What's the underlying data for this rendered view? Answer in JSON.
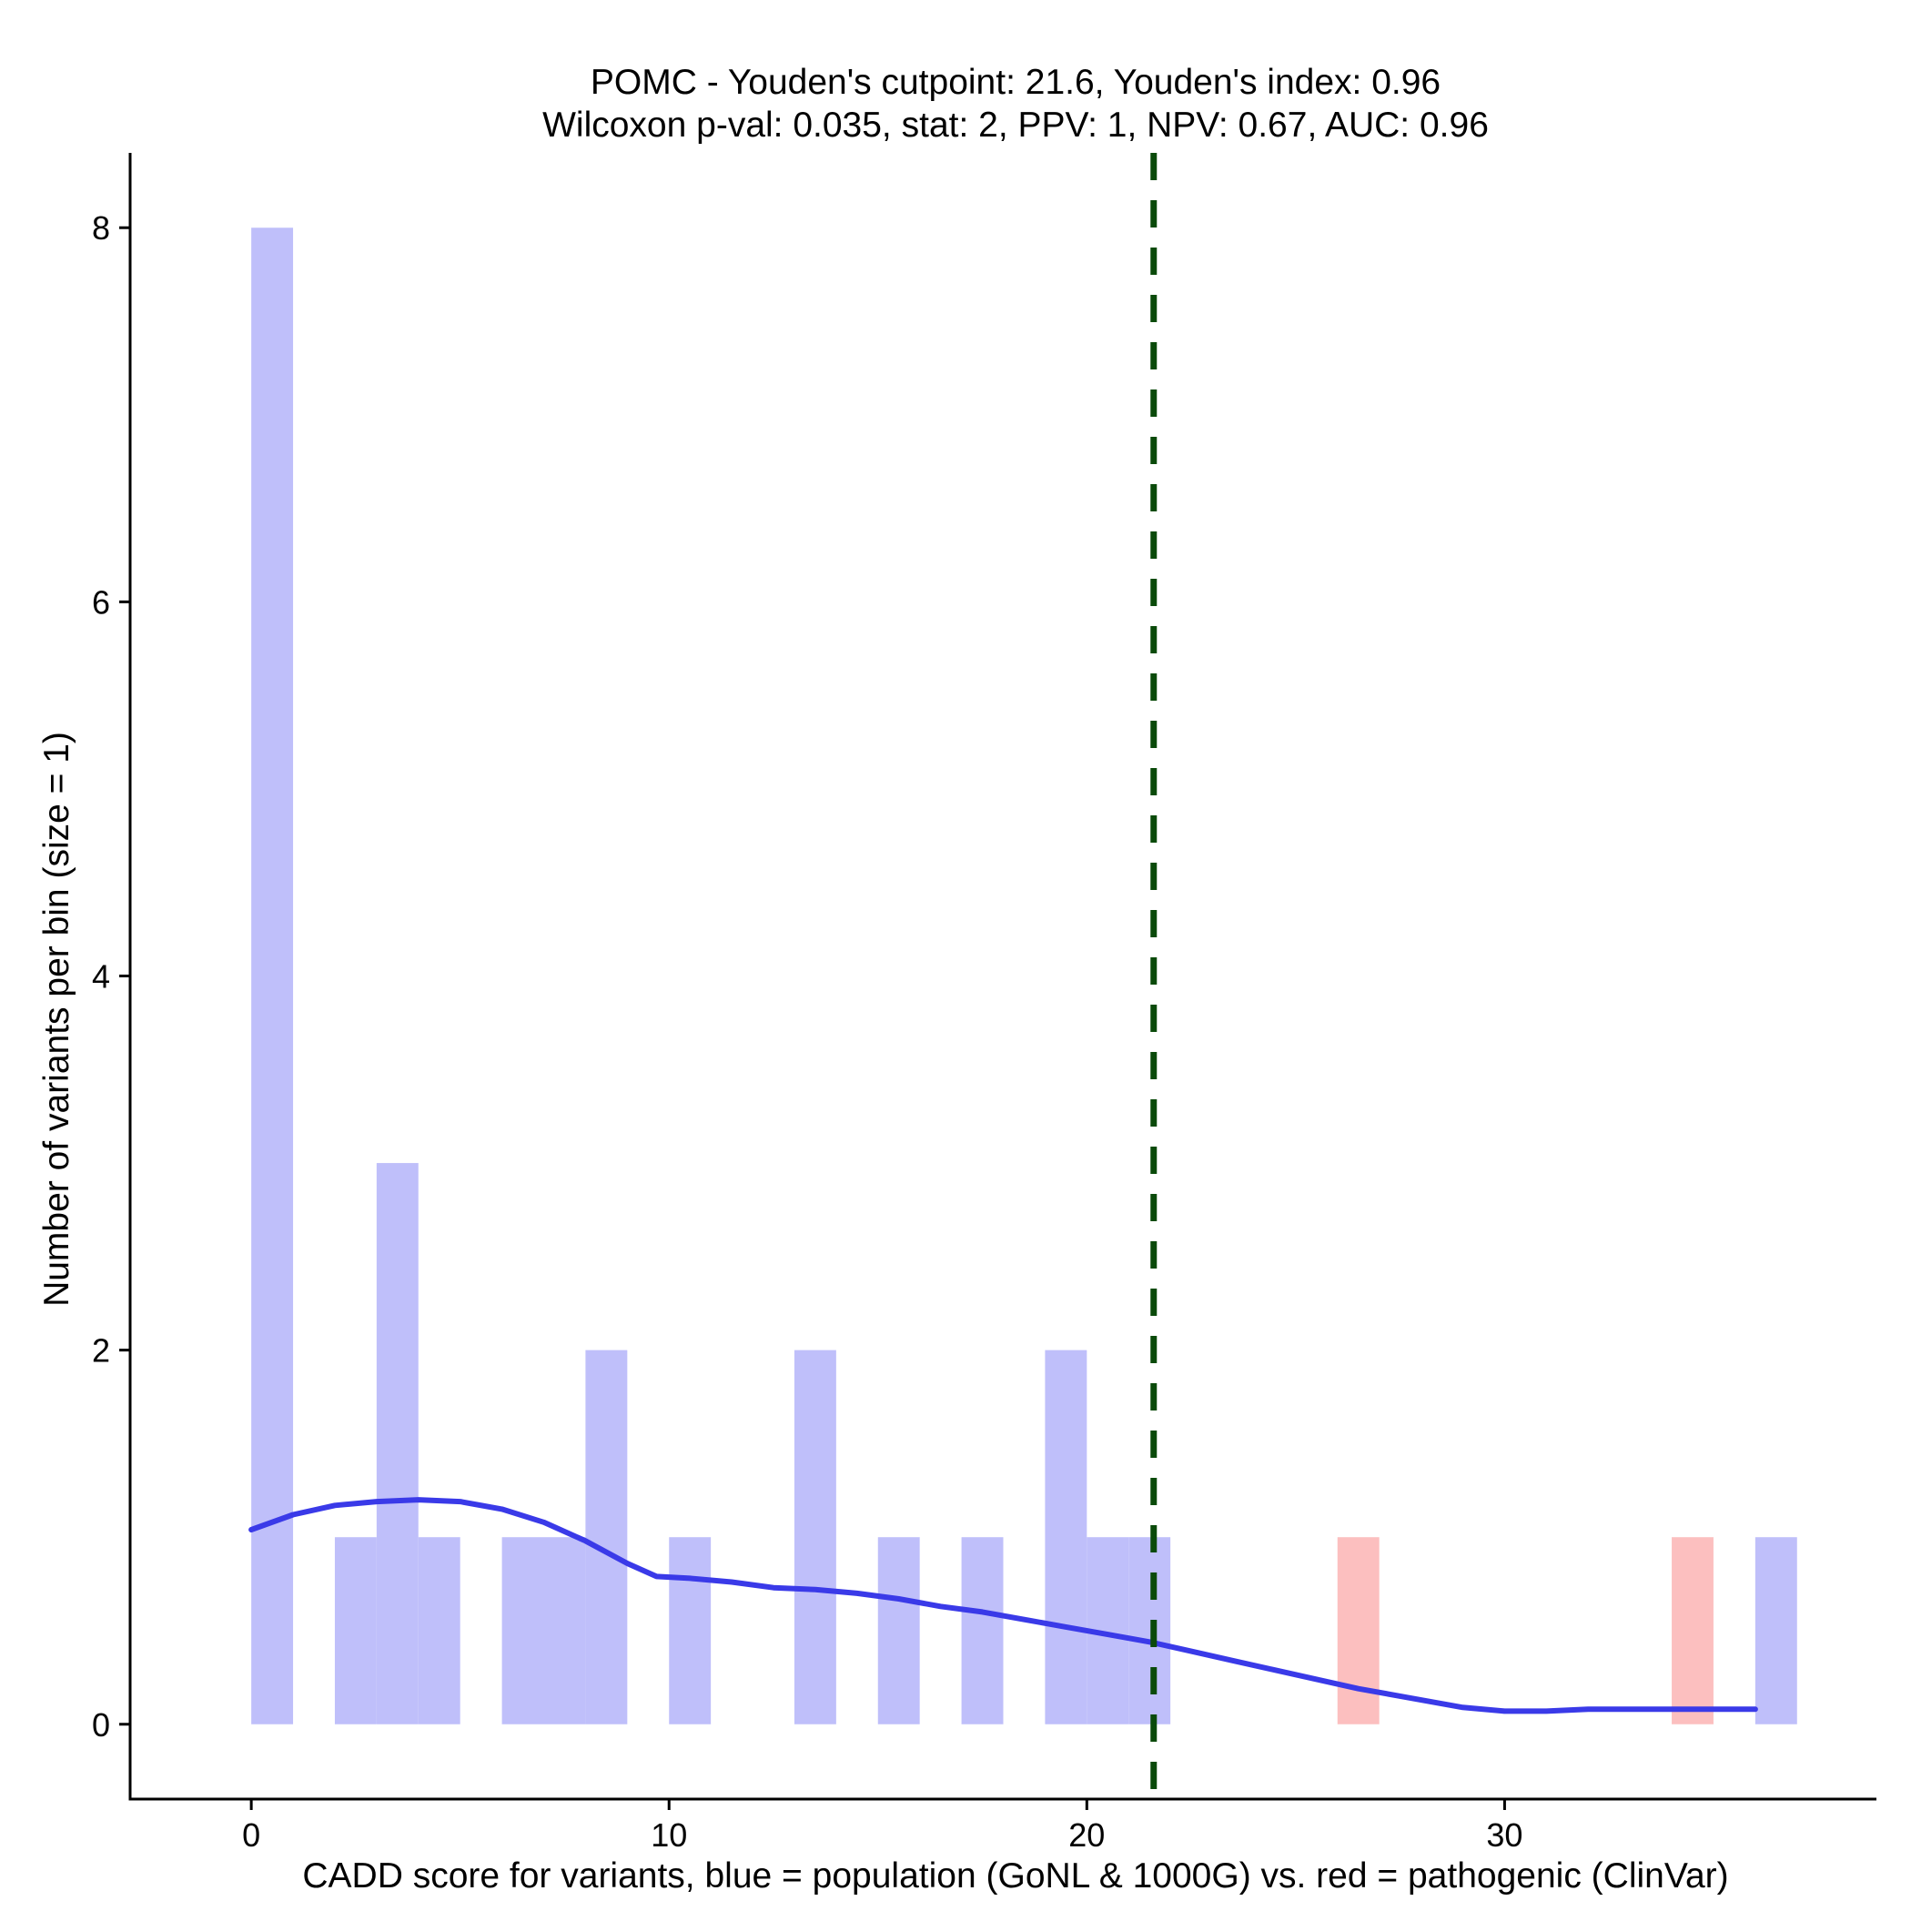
{
  "chart_data": {
    "type": "bar",
    "title_line1": "POMC - Youden's cutpoint: 21.6, Youden's index: 0.96",
    "title_line2": "Wilcoxon p-val: 0.035, stat: 2, PPV: 1, NPV: 0.67, AUC: 0.96",
    "xlabel": "CADD score for variants, blue = population (GoNL & 1000G) vs. red = pathogenic (ClinVar)",
    "ylabel": "Number of variants per bin (size = 1)",
    "xlim": [
      -2.9,
      38.9
    ],
    "ylim": [
      -0.4,
      8.4
    ],
    "xticks": [
      0,
      10,
      20,
      30
    ],
    "yticks": [
      0,
      2,
      4,
      6,
      8
    ],
    "bin_width": 1,
    "cutpoint": 21.6,
    "colors": {
      "population": "#bfbffa",
      "pathogenic": "#fcbfbf",
      "density": "#3a3ae8",
      "cutpoint": "#0a4a0a",
      "axis": "#000000"
    },
    "series": [
      {
        "name": "population",
        "bins": [
          {
            "start": 0,
            "count": 8
          },
          {
            "start": 2,
            "count": 1
          },
          {
            "start": 3,
            "count": 3
          },
          {
            "start": 4,
            "count": 1
          },
          {
            "start": 6,
            "count": 1
          },
          {
            "start": 7,
            "count": 1
          },
          {
            "start": 8,
            "count": 2
          },
          {
            "start": 10,
            "count": 1
          },
          {
            "start": 13,
            "count": 2
          },
          {
            "start": 15,
            "count": 1
          },
          {
            "start": 17,
            "count": 1
          },
          {
            "start": 19,
            "count": 2
          },
          {
            "start": 20,
            "count": 1
          },
          {
            "start": 21,
            "count": 1
          },
          {
            "start": 36,
            "count": 1
          }
        ]
      },
      {
        "name": "pathogenic",
        "bins": [
          {
            "start": 26,
            "count": 1
          },
          {
            "start": 34,
            "count": 1
          }
        ]
      }
    ],
    "density_curve": {
      "x": [
        0,
        1,
        2,
        3,
        4,
        5,
        6,
        7,
        8,
        9,
        9.7,
        10.5,
        11.5,
        12.5,
        13.5,
        14.5,
        15.5,
        16.5,
        17.5,
        18.5,
        19.5,
        20.5,
        21.5,
        22.5,
        23.5,
        24.5,
        25.5,
        26.5,
        27.5,
        28.5,
        29,
        30,
        31,
        32,
        33,
        34,
        35,
        36
      ],
      "y": [
        1.04,
        1.12,
        1.17,
        1.19,
        1.2,
        1.19,
        1.15,
        1.08,
        0.98,
        0.86,
        0.79,
        0.78,
        0.76,
        0.73,
        0.72,
        0.7,
        0.67,
        0.63,
        0.6,
        0.56,
        0.52,
        0.48,
        0.44,
        0.39,
        0.34,
        0.29,
        0.24,
        0.19,
        0.15,
        0.11,
        0.09,
        0.07,
        0.07,
        0.08,
        0.08,
        0.08,
        0.08,
        0.08
      ]
    }
  }
}
